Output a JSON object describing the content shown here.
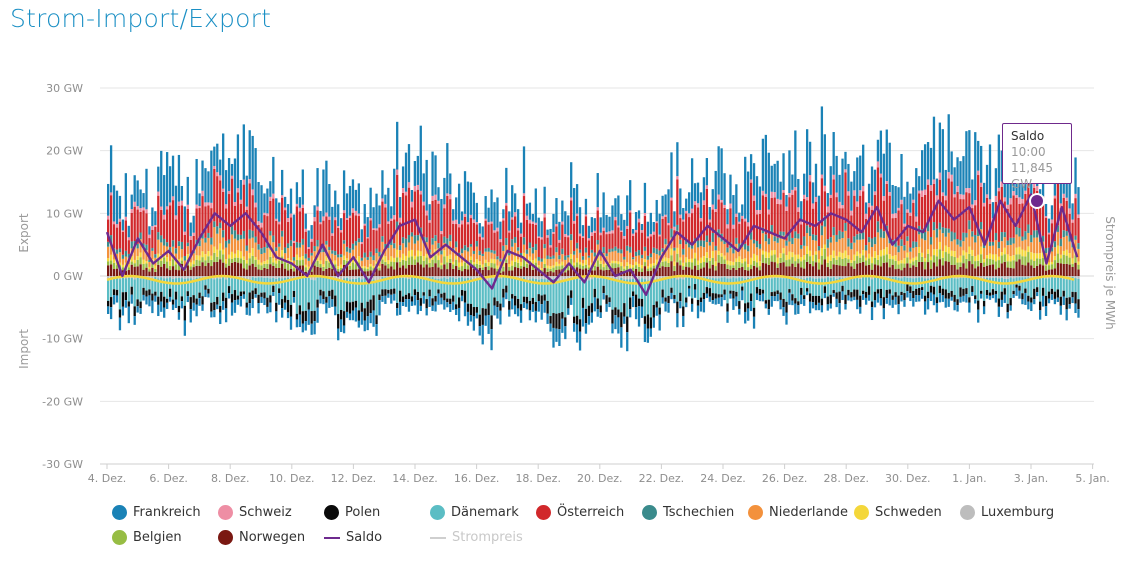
{
  "page": {
    "title": "Strom-Import/Export"
  },
  "colors": {
    "Frankreich": "#1a82b6",
    "Schweiz": "#ee8ea4",
    "Polen": "#0a0a0a",
    "Dänemark": "#5bbdc4",
    "Österreich": "#d1282b",
    "Tschechien": "#3a8b8c",
    "Niederlande": "#f3913c",
    "Schweden": "#f4d73a",
    "Luxemburg": "#bdbdbd",
    "Belgien": "#97bd44",
    "Norwegen": "#7a1812",
    "Saldo": "#6e2a8e",
    "Strompreis": "#cfcfcf"
  },
  "legend": [
    {
      "label": "Frankreich",
      "kind": "dot"
    },
    {
      "label": "Schweiz",
      "kind": "dot"
    },
    {
      "label": "Polen",
      "kind": "dot"
    },
    {
      "label": "Dänemark",
      "kind": "dot"
    },
    {
      "label": "Österreich",
      "kind": "dot"
    },
    {
      "label": "Tschechien",
      "kind": "dot"
    },
    {
      "label": "Niederlande",
      "kind": "dot"
    },
    {
      "label": "Schweden",
      "kind": "dot"
    },
    {
      "label": "Luxemburg",
      "kind": "dot"
    },
    {
      "label": "Belgien",
      "kind": "dot"
    },
    {
      "label": "Norwegen",
      "kind": "dot"
    },
    {
      "label": "Saldo",
      "kind": "line"
    },
    {
      "label": "Strompreis",
      "kind": "line",
      "muted": true
    }
  ],
  "tooltip": {
    "series": "Saldo",
    "time": "10:00",
    "value": "11,845 GW"
  },
  "chart_data": {
    "type": "bar",
    "stacked": true,
    "title": "Strom-Import/Export",
    "ylabel_positive": "Export",
    "ylabel_negative": "Import",
    "y2label": "Strompreis je MWh",
    "ylim": [
      -30,
      30
    ],
    "yticks": [
      30,
      20,
      10,
      0,
      -10,
      -20,
      -30
    ],
    "ytick_labels": [
      "30 GW",
      "20 GW",
      "10 GW",
      "0 GW",
      "-10 GW",
      "-20 GW",
      "-30 GW"
    ],
    "x_range_days": [
      0,
      31.6
    ],
    "x_tick_labels": [
      "4. Dez.",
      "6. Dez.",
      "8. Dez.",
      "10. Dez.",
      "12. Dez.",
      "14. Dez.",
      "16. Dez.",
      "18. Dez.",
      "20. Dez.",
      "22. Dez.",
      "24. Dez.",
      "26. Dez.",
      "28. Dez.",
      "30. Dez.",
      "1. Jan.",
      "3. Jan.",
      "5. Jan."
    ],
    "x_tick_days": [
      0,
      2,
      4,
      6,
      8,
      10,
      12,
      14,
      16,
      18,
      20,
      22,
      24,
      26,
      28,
      30,
      32
    ],
    "saldo_days": [
      0,
      0.5,
      1,
      1.5,
      2,
      2.5,
      3,
      3.5,
      4,
      4.5,
      5,
      5.5,
      6,
      6.5,
      7,
      7.5,
      8,
      8.5,
      9,
      9.5,
      10,
      10.5,
      11,
      11.5,
      12,
      12.5,
      13,
      13.5,
      14,
      14.5,
      15,
      15.5,
      16,
      16.5,
      17,
      17.5,
      18,
      18.5,
      19,
      19.5,
      20,
      20.5,
      21,
      21.5,
      22,
      22.5,
      23,
      23.5,
      24,
      24.5,
      25,
      25.5,
      26,
      26.5,
      27,
      27.5,
      28,
      28.5,
      29,
      29.5,
      30,
      30.5,
      31,
      31.5
    ],
    "saldo": [
      7,
      0,
      6,
      2,
      4,
      1,
      6,
      10,
      8,
      10,
      7,
      3,
      2,
      0,
      5,
      0,
      3,
      -1,
      4,
      8,
      9,
      3,
      5,
      3,
      1,
      -2,
      4,
      3,
      1,
      -1,
      2,
      -1,
      4,
      0,
      1,
      -3,
      3,
      7,
      5,
      8,
      6,
      4,
      8,
      7,
      6,
      9,
      8,
      10,
      9,
      7,
      11,
      5,
      8,
      7,
      12,
      9,
      11,
      5,
      12,
      8,
      13,
      2,
      11,
      3
    ],
    "stack_series_positive": [
      "Norwegen",
      "Belgien",
      "Schweden",
      "Niederlande",
      "Tschechien",
      "Österreich",
      "Schweiz",
      "Frankreich"
    ],
    "stack_series_negative": [
      "Luxemburg",
      "Dänemark",
      "Polen",
      "Frankreich"
    ],
    "typical_export_share": {
      "Norwegen": 1.0,
      "Belgien": 0.6,
      "Schweden": 0.5,
      "Niederlande": 1.2,
      "Tschechien": 0.6,
      "Österreich": 3.2,
      "Schweiz": 0.4,
      "Frankreich": 2.6
    },
    "typical_import_share": {
      "Luxemburg": 0.3,
      "Dänemark": 2.4,
      "Polen": 1.0,
      "Frankreich": 1.2
    }
  }
}
